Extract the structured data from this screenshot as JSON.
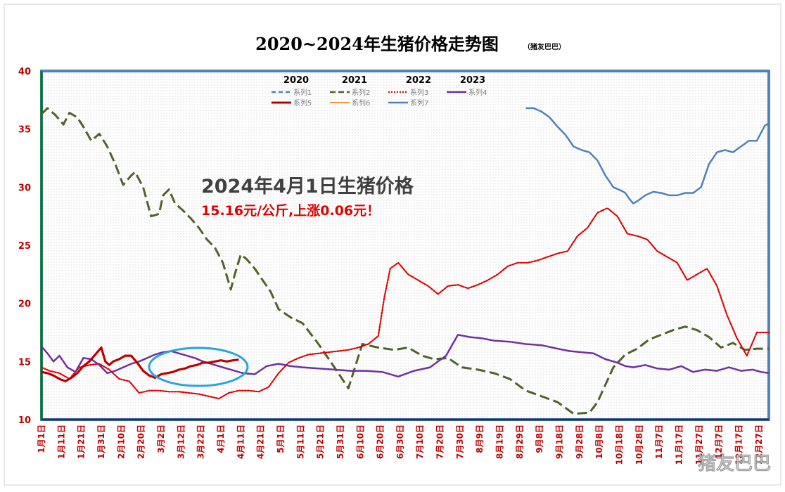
{
  "chart_data": {
    "type": "line",
    "title": "2020~2024年生猪价格走势图",
    "subtitle": "（猪友巴巴）",
    "ylim": [
      10,
      40
    ],
    "y_ticks": [
      "10",
      "15",
      "20",
      "25",
      "30",
      "35",
      "40"
    ],
    "x_ticks": [
      "1月1日",
      "1月11日",
      "1月21日",
      "1月31日",
      "2月10日",
      "2月20日",
      "3月2日",
      "3月12日",
      "3月22日",
      "4月1日",
      "4月11日",
      "4月21日",
      "5月1日",
      "5月11日",
      "5月21日",
      "5月31日",
      "6月10日",
      "6月20日",
      "6月30日",
      "7月10日",
      "7月20日",
      "7月30日",
      "8月9日",
      "8月19日",
      "8月29日",
      "9月8日",
      "9月18日",
      "9月28日",
      "10月8日",
      "10月18日",
      "10月28日",
      "11月7日",
      "11月17日",
      "11月27日",
      "12月7日",
      "12月17日",
      "12月27日"
    ],
    "grid": false,
    "legend": {
      "placement": "top",
      "years": [
        "2020",
        "2021",
        "2022",
        "2023"
      ],
      "row1": [
        "系列1",
        "系列2",
        "系列3",
        "系列4"
      ],
      "row2": [
        "系列5",
        "系列6",
        "系列7"
      ]
    },
    "series": [
      {
        "name": "系列1",
        "color": "#4f81bd",
        "dash": "dash",
        "visible": false,
        "x": [],
        "y": []
      },
      {
        "name": "系列2",
        "color": "#4f6228",
        "dash": "longdash",
        "x": [
          1,
          4,
          8,
          12,
          15,
          19,
          22,
          26,
          30,
          34,
          38,
          42,
          46,
          48,
          52,
          56,
          60,
          62,
          65,
          68,
          72,
          76,
          80,
          84,
          88,
          92,
          96,
          98,
          101,
          104,
          108,
          112,
          116,
          120,
          126,
          132,
          140,
          148,
          155,
          162,
          170,
          178,
          185,
          192,
          198,
          205,
          212,
          220,
          228,
          236,
          244,
          252,
          260,
          268,
          276,
          280,
          284,
          288,
          294,
          300,
          306,
          312,
          318,
          324,
          330,
          336,
          342,
          348,
          354,
          360,
          366
        ],
        "y": [
          36.3,
          36.8,
          36.2,
          35.4,
          36.4,
          36.0,
          35.2,
          34.0,
          34.6,
          33.5,
          32.0,
          30.2,
          31.0,
          31.3,
          30.0,
          27.5,
          27.7,
          29.3,
          29.8,
          28.6,
          28.0,
          27.3,
          26.5,
          25.5,
          24.8,
          23.5,
          21.2,
          22.5,
          24.2,
          23.8,
          23.0,
          22.0,
          21.0,
          19.5,
          18.8,
          18.3,
          16.5,
          14.5,
          12.7,
          16.5,
          16.2,
          16.0,
          16.2,
          15.5,
          15.2,
          15.3,
          14.5,
          14.3,
          14.0,
          13.5,
          12.5,
          12.0,
          11.5,
          10.5,
          10.6,
          11.5,
          13.0,
          14.5,
          15.6,
          16.1,
          16.9,
          17.3,
          17.7,
          18.0,
          17.7,
          17.1,
          16.2,
          16.6,
          16.0,
          16.1,
          16.1
        ]
      },
      {
        "name": "系列3",
        "color": "#e00000",
        "dash": "dot",
        "x": [
          1,
          5,
          10,
          15,
          20,
          25,
          30,
          35,
          40,
          45,
          50,
          55,
          60,
          65,
          70,
          75,
          80,
          85,
          90,
          95,
          100,
          105,
          110,
          115,
          120,
          125,
          130,
          135,
          140,
          145,
          150,
          155,
          160,
          165,
          170,
          173,
          176,
          180,
          185,
          190,
          195,
          200,
          205,
          210,
          215,
          220,
          225,
          230,
          235,
          240,
          245,
          250,
          255,
          260,
          265,
          270,
          275,
          280,
          285,
          290,
          295,
          300,
          305,
          310,
          315,
          320,
          325,
          330,
          335,
          340,
          345,
          350,
          355,
          360,
          366
        ],
        "y": [
          14.5,
          14.2,
          14.0,
          13.5,
          14.5,
          14.7,
          14.8,
          14.3,
          13.5,
          13.3,
          12.3,
          12.5,
          12.5,
          12.4,
          12.4,
          12.3,
          12.2,
          12.0,
          11.8,
          12.3,
          12.5,
          12.5,
          12.4,
          12.8,
          14.0,
          14.9,
          15.3,
          15.6,
          15.7,
          15.8,
          15.9,
          16.0,
          16.2,
          16.5,
          17.2,
          20.5,
          23.0,
          23.5,
          22.5,
          22.0,
          21.5,
          20.8,
          21.5,
          21.6,
          21.3,
          21.6,
          22.0,
          22.5,
          23.2,
          23.5,
          23.5,
          23.7,
          24.0,
          24.3,
          24.5,
          25.8,
          26.5,
          27.8,
          28.2,
          27.5,
          26.0,
          25.8,
          25.5,
          24.5,
          24.0,
          23.5,
          22.0,
          22.5,
          23.0,
          21.5,
          19.0,
          17.0,
          15.5,
          17.5,
          17.5
        ]
      },
      {
        "name": "系列4",
        "color": "#7030a0",
        "dash": "solid",
        "x": [
          1,
          4,
          7,
          10,
          14,
          18,
          22,
          26,
          30,
          34,
          38,
          42,
          46,
          50,
          54,
          58,
          62,
          66,
          70,
          74,
          78,
          82,
          86,
          90,
          94,
          98,
          102,
          108,
          114,
          120,
          126,
          132,
          140,
          148,
          156,
          164,
          172,
          180,
          188,
          196,
          200,
          204,
          210,
          216,
          222,
          228,
          236,
          244,
          252,
          260,
          266,
          272,
          278,
          284,
          290,
          294,
          298,
          304,
          310,
          316,
          322,
          328,
          334,
          340,
          346,
          352,
          358,
          362,
          366
        ],
        "y": [
          16.3,
          15.7,
          15.0,
          15.5,
          14.5,
          14.1,
          15.3,
          15.2,
          14.7,
          14.0,
          14.2,
          14.5,
          14.8,
          15.0,
          15.3,
          15.6,
          15.8,
          15.9,
          15.7,
          15.5,
          15.3,
          15.0,
          14.8,
          14.6,
          14.4,
          14.2,
          14.0,
          13.9,
          14.6,
          14.8,
          14.6,
          14.5,
          14.4,
          14.3,
          14.2,
          14.2,
          14.1,
          13.7,
          14.2,
          14.5,
          15.0,
          15.5,
          17.3,
          17.1,
          17.0,
          16.8,
          16.7,
          16.5,
          16.4,
          16.1,
          15.9,
          15.8,
          15.7,
          15.2,
          14.9,
          14.6,
          14.5,
          14.7,
          14.4,
          14.3,
          14.6,
          14.1,
          14.3,
          14.2,
          14.5,
          14.2,
          14.3,
          14.1,
          14.0
        ]
      },
      {
        "name": "系列5",
        "color": "#c00000",
        "dash": "solid",
        "x": [
          1,
          4,
          7,
          10,
          13,
          16,
          19,
          22,
          25,
          28,
          31,
          33,
          35,
          37,
          40,
          43,
          46,
          49,
          52,
          55,
          58,
          61,
          64,
          67,
          70,
          73,
          76,
          79,
          82,
          85,
          88,
          91,
          94,
          97,
          100
        ],
        "y": [
          14.1,
          14.0,
          13.8,
          13.5,
          13.3,
          13.6,
          14.0,
          14.6,
          15.0,
          15.6,
          16.2,
          15.0,
          14.7,
          15.0,
          15.2,
          15.5,
          15.5,
          14.9,
          14.2,
          13.8,
          13.6,
          13.9,
          14.0,
          14.1,
          14.3,
          14.4,
          14.6,
          14.7,
          14.9,
          14.9,
          15.0,
          15.1,
          15.0,
          15.1,
          15.16
        ]
      },
      {
        "name": "系列6",
        "color": "#f79646",
        "dash": "solid",
        "visible": false,
        "x": [],
        "y": []
      },
      {
        "name": "系列7",
        "color": "#4f81bd",
        "dash": "solid",
        "x": [
          244,
          248,
          252,
          256,
          260,
          264,
          268,
          272,
          276,
          280,
          284,
          288,
          292,
          294,
          296,
          298,
          300,
          304,
          308,
          312,
          316,
          320,
          324,
          328,
          332,
          334,
          336,
          340,
          344,
          348,
          352,
          356,
          360,
          364,
          366
        ],
        "y": [
          36.8,
          36.8,
          36.5,
          36.0,
          35.2,
          34.5,
          33.5,
          33.2,
          33.0,
          32.3,
          31.0,
          30.0,
          29.7,
          29.5,
          29.0,
          28.6,
          28.8,
          29.3,
          29.6,
          29.5,
          29.3,
          29.3,
          29.5,
          29.5,
          30.0,
          31.0,
          32.0,
          33.0,
          33.2,
          33.0,
          33.5,
          34.0,
          34.0,
          35.3,
          35.5
        ]
      }
    ],
    "annotations": {
      "headline": "2024年4月1日生猪价格",
      "detail": "15.16元/公斤,上涨0.06元！"
    },
    "highlight": {
      "shape": "ellipse",
      "color": "#2aa3e0",
      "around": "系列5 (2024) Mar–Apr"
    }
  },
  "watermark": "猪友巴巴",
  "colors": {
    "plot_border": "#4f81bd",
    "left_axis": "#008000",
    "bottom_axis": "#1f3864",
    "tick_text": "#c00000"
  }
}
